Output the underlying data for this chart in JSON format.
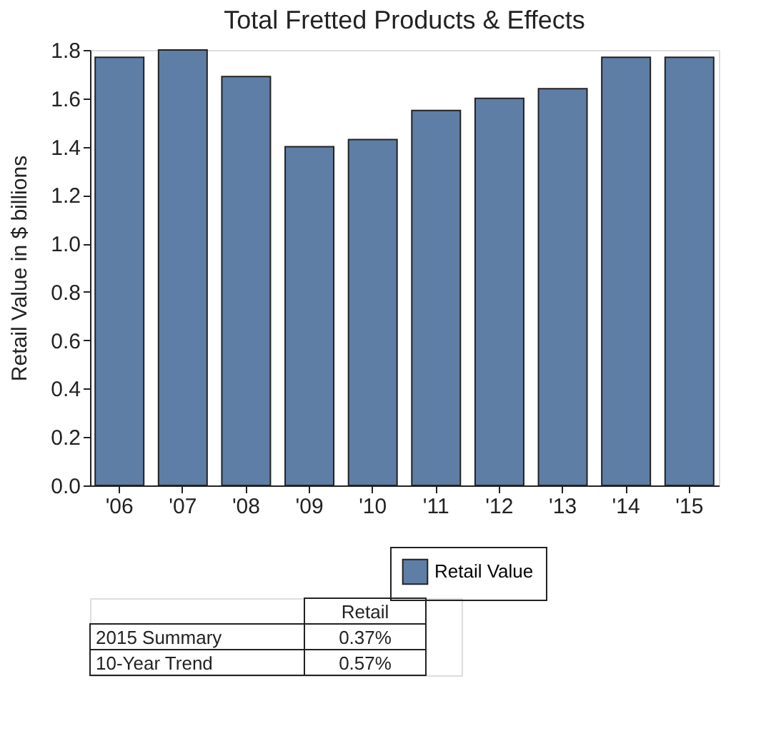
{
  "chart_data": {
    "type": "bar",
    "title": "Total Fretted Products & Effects",
    "ylabel": "Retail Value in $ billions",
    "categories": [
      "'06",
      "'07",
      "'08",
      "'09",
      "'10",
      "'11",
      "'12",
      "'13",
      "'14",
      "'15"
    ],
    "series": [
      {
        "name": "Retail Value",
        "color": "#5f7ea6",
        "values": [
          1.77,
          1.8,
          1.69,
          1.4,
          1.43,
          1.55,
          1.6,
          1.64,
          1.77,
          1.77
        ]
      }
    ],
    "ylim": [
      0,
      1.8
    ],
    "yticks": [
      {
        "value": 0,
        "label": "0.0"
      },
      0.2,
      0.4,
      0.6,
      0.8,
      {
        "value": 1,
        "label": "1.0"
      },
      1.2,
      1.4,
      1.6,
      1.8
    ],
    "grid": false,
    "legend": "bottom",
    "annotations": [
      "Retail",
      "2015 Summary",
      "0.37%",
      "10-Year Trend",
      "0.57%"
    ]
  }
}
